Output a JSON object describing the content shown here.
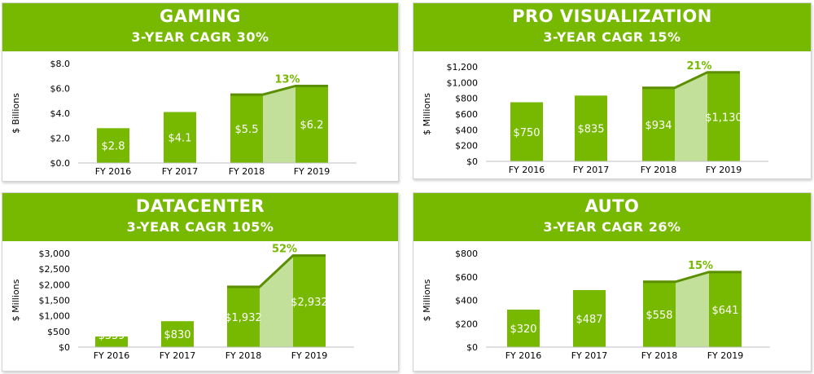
{
  "colors": {
    "accent": "#76b900",
    "bar": "#76b900",
    "growth_fill": "#c2e09a",
    "line": "#5b8f00"
  },
  "chart_data": [
    {
      "type": "bar",
      "title": "GAMING",
      "subtitle": "3-YEAR CAGR 30%",
      "ylabel": "$ Billions",
      "categories": [
        "FY 2016",
        "FY 2017",
        "FY 2018",
        "FY 2019"
      ],
      "values": [
        2.8,
        4.1,
        5.5,
        6.2
      ],
      "value_labels": [
        "$2.8",
        "$4.1",
        "$5.5",
        "$6.2"
      ],
      "ylim": [
        0,
        8
      ],
      "yticks": [
        0,
        2,
        4,
        6,
        8
      ],
      "ytick_labels": [
        "$0.0",
        "$2.0",
        "$4.0",
        "$6.0",
        "$8.0"
      ],
      "growth_annotation": "13%"
    },
    {
      "type": "bar",
      "title": "PRO VISUALIZATION",
      "subtitle": "3-YEAR CAGR 15%",
      "ylabel": "$ Millions",
      "categories": [
        "FY 2016",
        "FY 2017",
        "FY 2018",
        "FY 2019"
      ],
      "values": [
        750,
        835,
        934,
        1130
      ],
      "value_labels": [
        "$750",
        "$835",
        "$934",
        "$1,130"
      ],
      "ylim": [
        0,
        1200
      ],
      "yticks": [
        0,
        200,
        400,
        600,
        800,
        1000,
        1200
      ],
      "ytick_labels": [
        "$0",
        "$200",
        "$400",
        "$600",
        "$800",
        "$1,000",
        "$1,200"
      ],
      "growth_annotation": "21%"
    },
    {
      "type": "bar",
      "title": "DATACENTER",
      "subtitle": "3-YEAR CAGR 105%",
      "ylabel": "$ Millions",
      "categories": [
        "FY 2016",
        "FY 2017",
        "FY 2018",
        "FY 2019"
      ],
      "values": [
        339,
        830,
        1932,
        2932
      ],
      "value_labels": [
        "$339",
        "$830",
        "$1,932",
        "$2,932"
      ],
      "ylim": [
        0,
        3000
      ],
      "yticks": [
        0,
        500,
        1000,
        1500,
        2000,
        2500,
        3000
      ],
      "ytick_labels": [
        "$0",
        "$500",
        "$1,000",
        "$1,500",
        "$2,000",
        "$2,500",
        "$3,000"
      ],
      "growth_annotation": "52%"
    },
    {
      "type": "bar",
      "title": "AUTO",
      "subtitle": "3-YEAR CAGR 26%",
      "ylabel": "$ Millions",
      "categories": [
        "FY 2016",
        "FY 2017",
        "FY 2018",
        "FY 2019"
      ],
      "values": [
        320,
        487,
        558,
        641
      ],
      "value_labels": [
        "$320",
        "$487",
        "$558",
        "$641"
      ],
      "ylim": [
        0,
        800
      ],
      "yticks": [
        0,
        200,
        400,
        600,
        800
      ],
      "ytick_labels": [
        "$0",
        "$200",
        "$400",
        "$600",
        "$800"
      ],
      "growth_annotation": "15%"
    }
  ]
}
